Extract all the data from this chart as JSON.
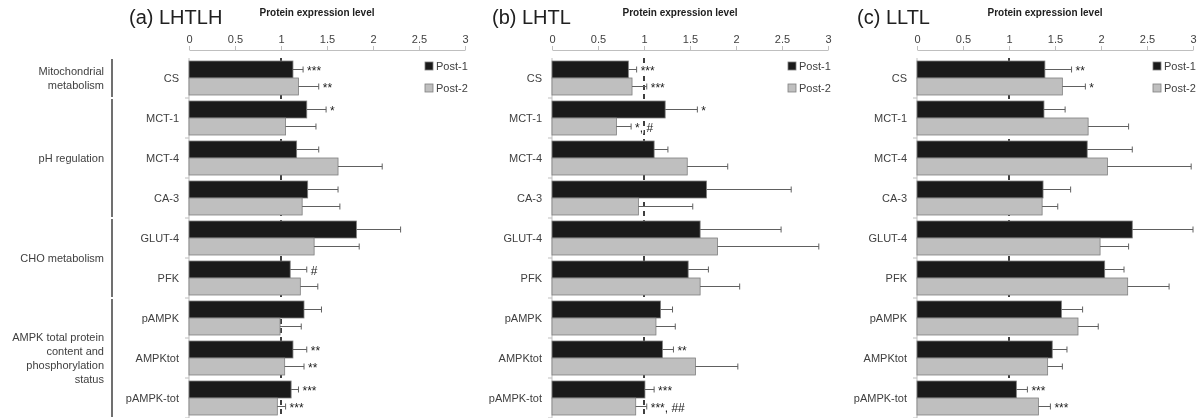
{
  "chart_data": [
    {
      "type": "bar",
      "orientation": "horizontal",
      "title": "(a) LHTLH",
      "xlabel": "Protein expression level",
      "categories": [
        "CS",
        "MCT-1",
        "MCT-4",
        "CA-3",
        "GLUT-4",
        "PFK",
        "pAMPK",
        "AMPKtot",
        "pAMPK-tot"
      ],
      "series": [
        {
          "name": "Post-1",
          "color": "#1a1a1a",
          "values": [
            1.13,
            1.28,
            1.17,
            1.29,
            1.82,
            1.1,
            1.25,
            1.13,
            1.11
          ],
          "errors": [
            [
              1.13,
              1.24
            ],
            [
              1.28,
              1.49
            ],
            [
              1.17,
              1.41
            ],
            [
              1.29,
              1.62
            ],
            [
              1.82,
              2.3
            ],
            [
              1.1,
              1.28
            ],
            [
              1.25,
              1.44
            ],
            [
              1.13,
              1.28
            ],
            [
              1.11,
              1.19
            ]
          ]
        },
        {
          "name": "Post-2",
          "color": "#bfbfbf",
          "values": [
            1.19,
            1.05,
            1.62,
            1.23,
            1.36,
            1.21,
            0.99,
            1.04,
            0.96
          ],
          "errors": [
            [
              1.19,
              1.41
            ],
            [
              1.05,
              1.38
            ],
            [
              1.62,
              2.1
            ],
            [
              1.23,
              1.64
            ],
            [
              1.36,
              1.85
            ],
            [
              1.21,
              1.4
            ],
            [
              0.99,
              1.22
            ],
            [
              1.04,
              1.25
            ],
            [
              0.96,
              1.05
            ]
          ]
        }
      ],
      "xlim": [
        0,
        3
      ],
      "xticks": [
        0,
        0.5,
        1,
        1.5,
        2,
        2.5,
        3
      ],
      "legend": "top right",
      "ref_lines": [
        {
          "axis": "x",
          "value": 1,
          "line_style": "dashed"
        }
      ],
      "annotations": [
        "Mitochondrial metabolism",
        "pH regulation",
        "CHO metabolism",
        "AMPK total protein content and phosphorylation status",
        {
          "text": "***",
          "x": 1.13,
          "y": "CS"
        },
        {
          "text": "**",
          "x": 1.19,
          "y": "CS"
        },
        {
          "text": "*",
          "x": 1.28,
          "y": "MCT-1"
        },
        {
          "text": "#",
          "x": 1.1,
          "y": "PFK"
        },
        {
          "text": "**",
          "x": 1.13,
          "y": "AMPKtot"
        },
        {
          "text": "**",
          "x": 1.04,
          "y": "AMPKtot"
        },
        {
          "text": "***",
          "x": 1.11,
          "y": "pAMPK-tot"
        },
        {
          "text": "***",
          "x": 0.96,
          "y": "pAMPK-tot"
        }
      ]
    },
    {
      "type": "bar",
      "orientation": "horizontal",
      "title": "(b) LHTL",
      "xlabel": "Protein expression level",
      "categories": [
        "CS",
        "MCT-1",
        "MCT-4",
        "CA-3",
        "GLUT-4",
        "PFK",
        "pAMPK",
        "AMPKtot",
        "pAMPK-tot"
      ],
      "series": [
        {
          "name": "Post-1",
          "color": "#1a1a1a",
          "values": [
            0.83,
            1.23,
            1.11,
            1.68,
            1.61,
            1.48,
            1.18,
            1.2,
            1.01
          ],
          "errors": [
            [
              0.83,
              0.92
            ],
            [
              1.23,
              1.58
            ],
            [
              1.11,
              1.26
            ],
            [
              1.68,
              2.6
            ],
            [
              1.61,
              2.49
            ],
            [
              1.48,
              1.7
            ],
            [
              1.18,
              1.31
            ],
            [
              1.2,
              1.32
            ],
            [
              1.01,
              1.11
            ]
          ]
        },
        {
          "name": "Post-2",
          "color": "#bfbfbf",
          "values": [
            0.87,
            0.7,
            1.47,
            0.94,
            1.8,
            1.61,
            1.13,
            1.56,
            0.91
          ],
          "errors": [
            [
              0.87,
              1.03
            ],
            [
              0.7,
              0.86
            ],
            [
              1.47,
              1.91
            ],
            [
              0.94,
              1.53
            ],
            [
              1.8,
              2.9
            ],
            [
              1.61,
              2.04
            ],
            [
              1.13,
              1.34
            ],
            [
              1.56,
              2.02
            ],
            [
              0.91,
              1.03
            ]
          ]
        }
      ],
      "xlim": [
        0,
        3
      ],
      "xticks": [
        0,
        0.5,
        1,
        1.5,
        2,
        2.5,
        3
      ],
      "legend": "top right",
      "ref_lines": [
        {
          "axis": "x",
          "value": 1,
          "line_style": "dashed"
        }
      ],
      "annotations": [
        {
          "text": "***",
          "x": 0.83,
          "y": "CS"
        },
        {
          "text": "***",
          "x": 0.87,
          "y": "CS"
        },
        {
          "text": "*",
          "x": 1.23,
          "y": "MCT-1"
        },
        {
          "text": "*, #",
          "x": 0.7,
          "y": "MCT-1"
        },
        {
          "text": "**",
          "x": 1.2,
          "y": "AMPKtot"
        },
        {
          "text": "***",
          "x": 1.01,
          "y": "pAMPK-tot"
        },
        {
          "text": "***, ##",
          "x": 0.91,
          "y": "pAMPK-tot"
        }
      ]
    },
    {
      "type": "bar",
      "orientation": "horizontal",
      "title": "(c) LLTL",
      "xlabel": "Protein expression level",
      "categories": [
        "CS",
        "MCT-1",
        "MCT-4",
        "CA-3",
        "GLUT-4",
        "PFK",
        "pAMPK",
        "AMPKtot",
        "pAMPK-tot"
      ],
      "series": [
        {
          "name": "Post-1",
          "color": "#1a1a1a",
          "values": [
            1.39,
            1.38,
            1.85,
            1.37,
            2.34,
            2.04,
            1.57,
            1.47,
            1.08
          ],
          "errors": [
            [
              1.39,
              1.68
            ],
            [
              1.38,
              1.61
            ],
            [
              1.85,
              2.34
            ],
            [
              1.37,
              1.67
            ],
            [
              2.34,
              3
            ],
            [
              2.04,
              2.25
            ],
            [
              1.57,
              1.8
            ],
            [
              1.47,
              1.63
            ],
            [
              1.08,
              1.2
            ]
          ]
        },
        {
          "name": "Post-2",
          "color": "#bfbfbf",
          "values": [
            1.58,
            1.86,
            2.07,
            1.36,
            1.99,
            2.29,
            1.75,
            1.42,
            1.32
          ],
          "errors": [
            [
              1.58,
              1.83
            ],
            [
              1.86,
              2.3
            ],
            [
              2.07,
              2.98
            ],
            [
              1.36,
              1.53
            ],
            [
              1.99,
              2.3
            ],
            [
              2.29,
              2.74
            ],
            [
              1.75,
              1.97
            ],
            [
              1.42,
              1.58
            ],
            [
              1.32,
              1.45
            ]
          ]
        }
      ],
      "xlim": [
        0,
        3
      ],
      "xticks": [
        0,
        0.5,
        1,
        1.5,
        2,
        2.5,
        3
      ],
      "legend": "top right",
      "ref_lines": [
        {
          "axis": "x",
          "value": 1,
          "line_style": "dashed"
        }
      ],
      "annotations": [
        {
          "text": "**",
          "x": 1.39,
          "y": "CS"
        },
        {
          "text": "*",
          "x": 1.58,
          "y": "CS"
        },
        {
          "text": "***",
          "x": 1.08,
          "y": "pAMPK-tot"
        },
        {
          "text": "***",
          "x": 1.32,
          "y": "pAMPK-tot"
        }
      ]
    }
  ]
}
